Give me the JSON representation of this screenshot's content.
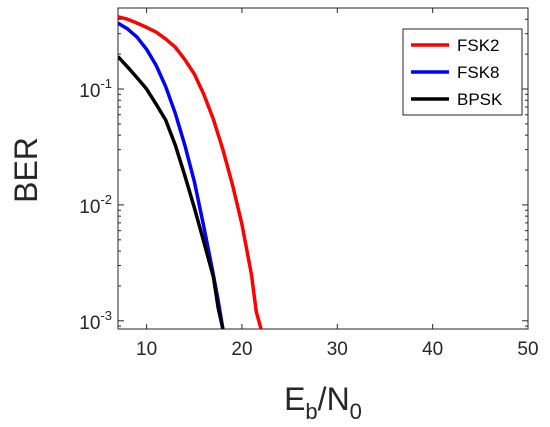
{
  "chart_data": {
    "type": "line",
    "title": "",
    "xlabel": {
      "base": "E",
      "sub1": "b",
      "mid": "/N",
      "sub2": "0"
    },
    "ylabel": "BER",
    "xlim": [
      7,
      50
    ],
    "ylim": [
      0.00085,
      0.5
    ],
    "yscale": "log",
    "grid": false,
    "legend_position": "top-right",
    "x_ticks": [
      10,
      20,
      30,
      40,
      50
    ],
    "x_tick_labels": [
      "10",
      "20",
      "30",
      "40",
      "50"
    ],
    "y_ticks": [
      {
        "value": 0.1,
        "base": "10",
        "exp": "-1"
      },
      {
        "value": 0.01,
        "base": "10",
        "exp": "-2"
      },
      {
        "value": 0.001,
        "base": "10",
        "exp": "-3"
      }
    ],
    "series": [
      {
        "name": "FSK2",
        "color": "#ff0000",
        "points": [
          [
            7,
            0.42
          ],
          [
            8,
            0.4
          ],
          [
            9,
            0.37
          ],
          [
            10,
            0.34
          ],
          [
            11,
            0.31
          ],
          [
            12,
            0.27
          ],
          [
            13,
            0.23
          ],
          [
            14,
            0.18
          ],
          [
            15,
            0.135
          ],
          [
            16,
            0.09
          ],
          [
            17,
            0.055
          ],
          [
            18,
            0.03
          ],
          [
            19,
            0.015
          ],
          [
            20,
            0.0068
          ],
          [
            21,
            0.0025
          ],
          [
            21.5,
            0.0012
          ],
          [
            22,
            0.00085
          ]
        ]
      },
      {
        "name": "FSK8",
        "color": "#0000ff",
        "points": [
          [
            7,
            0.37
          ],
          [
            8,
            0.33
          ],
          [
            9,
            0.28
          ],
          [
            10,
            0.22
          ],
          [
            11,
            0.16
          ],
          [
            12,
            0.105
          ],
          [
            13,
            0.062
          ],
          [
            14,
            0.033
          ],
          [
            15,
            0.016
          ],
          [
            16,
            0.0065
          ],
          [
            17,
            0.0025
          ],
          [
            17.5,
            0.0015
          ],
          [
            18,
            0.00085
          ]
        ]
      },
      {
        "name": "BPSK",
        "color": "#000000",
        "points": [
          [
            7,
            0.19
          ],
          [
            8,
            0.155
          ],
          [
            9,
            0.125
          ],
          [
            10,
            0.1
          ],
          [
            11,
            0.074
          ],
          [
            12,
            0.054
          ],
          [
            13,
            0.033
          ],
          [
            14,
            0.018
          ],
          [
            15,
            0.0095
          ],
          [
            16,
            0.0048
          ],
          [
            17,
            0.0024
          ],
          [
            17.5,
            0.0013
          ],
          [
            18,
            0.00085
          ]
        ]
      }
    ]
  }
}
